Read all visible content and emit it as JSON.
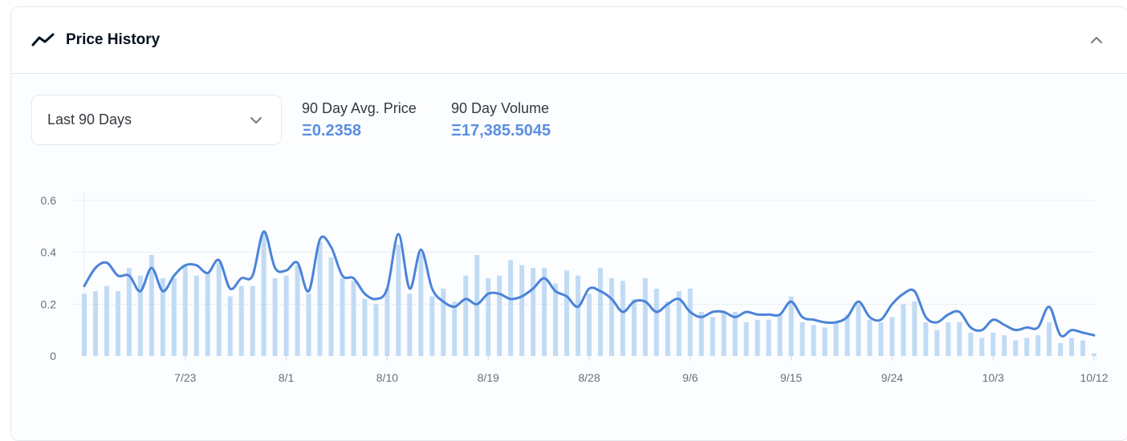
{
  "header": {
    "title": "Price History",
    "icon": "line-chart-icon",
    "collapse_icon": "chevron-up-icon"
  },
  "filter": {
    "selected": "Last 90 Days",
    "icon": "chevron-down-icon"
  },
  "stats": {
    "avg_label": "90 Day Avg. Price",
    "avg_value": "Ξ0.2358",
    "volume_label": "90 Day Volume",
    "volume_value": "Ξ17,385.5045"
  },
  "colors": {
    "line": "#4b83d9",
    "bars": "#c2dbf5",
    "accent": "#5a8ee0"
  },
  "chart_data": {
    "type": "line",
    "x_start": "7/14",
    "x_end": "10/12",
    "xticks": [
      "7/23",
      "8/1",
      "8/10",
      "8/19",
      "8/28",
      "9/6",
      "9/15",
      "9/24",
      "10/3",
      "10/12"
    ],
    "yticks": [
      "0",
      "0.2",
      "0.4",
      "0.6"
    ],
    "ylim": [
      0,
      0.6
    ],
    "grid": true,
    "series": [
      {
        "type": "line",
        "values": [
          0.27,
          0.34,
          0.36,
          0.31,
          0.31,
          0.25,
          0.34,
          0.25,
          0.31,
          0.35,
          0.35,
          0.32,
          0.37,
          0.26,
          0.3,
          0.31,
          0.48,
          0.34,
          0.33,
          0.36,
          0.25,
          0.45,
          0.42,
          0.31,
          0.3,
          0.24,
          0.22,
          0.26,
          0.47,
          0.26,
          0.41,
          0.26,
          0.21,
          0.19,
          0.22,
          0.2,
          0.24,
          0.24,
          0.22,
          0.23,
          0.26,
          0.3,
          0.25,
          0.23,
          0.19,
          0.26,
          0.25,
          0.22,
          0.17,
          0.21,
          0.21,
          0.17,
          0.2,
          0.22,
          0.17,
          0.15,
          0.17,
          0.17,
          0.15,
          0.17,
          0.16,
          0.16,
          0.16,
          0.21,
          0.15,
          0.14,
          0.13,
          0.13,
          0.15,
          0.21,
          0.15,
          0.14,
          0.2,
          0.24,
          0.25,
          0.15,
          0.13,
          0.16,
          0.17,
          0.11,
          0.1,
          0.14,
          0.12,
          0.1,
          0.11,
          0.11,
          0.19,
          0.08,
          0.1,
          0.09,
          0.08
        ]
      },
      {
        "type": "bar",
        "values": [
          0.24,
          0.25,
          0.27,
          0.25,
          0.34,
          0.31,
          0.39,
          0.3,
          0.3,
          0.35,
          0.31,
          0.32,
          0.36,
          0.23,
          0.27,
          0.27,
          0.48,
          0.3,
          0.31,
          0.35,
          0.24,
          0.44,
          0.38,
          0.3,
          0.29,
          0.22,
          0.2,
          0.26,
          0.43,
          0.24,
          0.4,
          0.23,
          0.26,
          0.21,
          0.31,
          0.39,
          0.3,
          0.31,
          0.37,
          0.35,
          0.34,
          0.34,
          0.28,
          0.33,
          0.31,
          0.24,
          0.34,
          0.3,
          0.29,
          0.22,
          0.3,
          0.26,
          0.21,
          0.25,
          0.26,
          0.17,
          0.15,
          0.17,
          0.17,
          0.13,
          0.14,
          0.14,
          0.16,
          0.23,
          0.13,
          0.12,
          0.11,
          0.13,
          0.16,
          0.2,
          0.14,
          0.13,
          0.15,
          0.2,
          0.21,
          0.13,
          0.1,
          0.13,
          0.13,
          0.09,
          0.07,
          0.09,
          0.08,
          0.06,
          0.07,
          0.08,
          0.13,
          0.05,
          0.07,
          0.06,
          0.01
        ]
      }
    ]
  }
}
